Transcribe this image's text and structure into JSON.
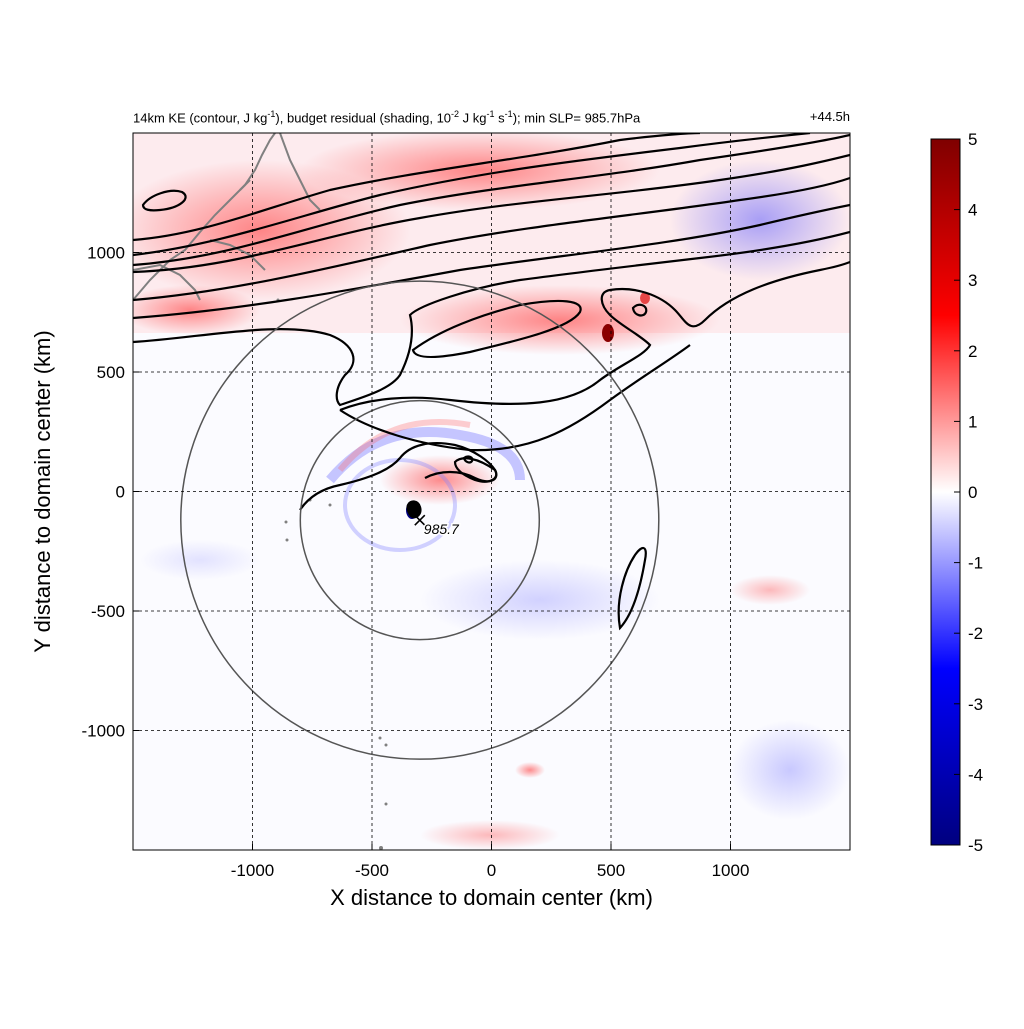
{
  "figure": {
    "title_parts": [
      {
        "t": "14km KE (contour, J kg"
      },
      {
        "t": "-1",
        "sup": true
      },
      {
        "t": "), budget residual (shading, 10"
      },
      {
        "t": "-2",
        "sup": true
      },
      {
        "t": " J kg"
      },
      {
        "t": "-1",
        "sup": true
      },
      {
        "t": " s"
      },
      {
        "t": "-1",
        "sup": true
      },
      {
        "t": "); min SLP= 985.7hPa"
      }
    ],
    "lead_time": "+44.5h",
    "min_slp_label": "985.7"
  },
  "chart_data": {
    "type": "heatmap",
    "xlabel": "X distance to domain center (km)",
    "ylabel": "Y distance to domain center (km)",
    "xlim": [
      -1500,
      1500
    ],
    "ylim": [
      -1500,
      1500
    ],
    "xticks": [
      -1000,
      -500,
      0,
      500,
      1000
    ],
    "yticks": [
      -1000,
      -500,
      0,
      500,
      1000
    ],
    "grid": "dashed at ticks",
    "colorbar": {
      "min": -5,
      "max": 5,
      "ticks": [
        5,
        4,
        3,
        2,
        1,
        0,
        -1,
        -2,
        -3,
        -4,
        -5
      ],
      "colormap": [
        "#00007f",
        "#0000ff",
        "#ffffff",
        "#ff0000",
        "#7f0000"
      ]
    },
    "storm_center_km": [
      -300,
      -120
    ],
    "radius_rings_km": [
      500,
      1000
    ],
    "min_slp_hpa": 985.7,
    "colors": {
      "contour": "#000000",
      "coastline": "#808080",
      "ring": "#555555"
    }
  }
}
